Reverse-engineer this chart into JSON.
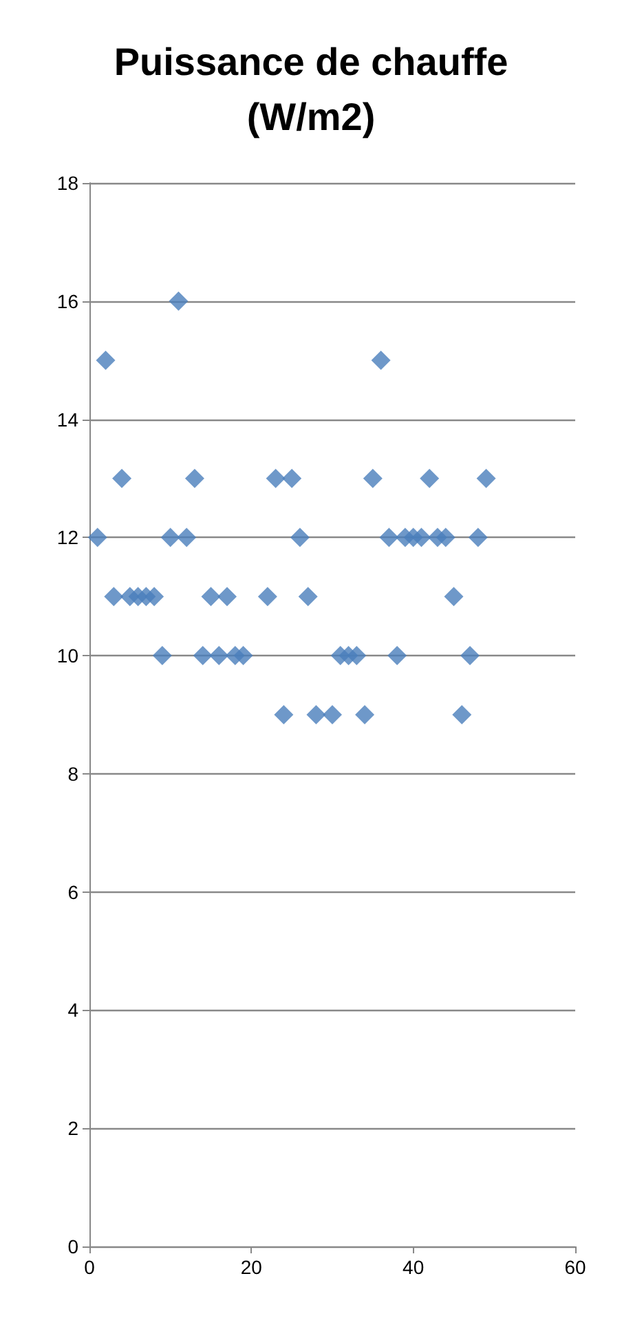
{
  "chart_data": {
    "type": "scatter",
    "title": "Puissance de chauffe\n(W/m2)",
    "x": [
      1,
      2,
      3,
      4,
      5,
      6,
      7,
      8,
      9,
      10,
      11,
      12,
      13,
      14,
      15,
      16,
      17,
      18,
      19,
      22,
      23,
      24,
      25,
      26,
      27,
      28,
      30,
      31,
      32,
      33,
      34,
      35,
      36,
      37,
      38,
      39,
      40,
      41,
      42,
      43,
      44,
      45,
      46,
      47,
      48,
      49
    ],
    "values": [
      12,
      15,
      11,
      13,
      11,
      11,
      11,
      11,
      10,
      12,
      16,
      12,
      13,
      10,
      11,
      10,
      11,
      10,
      10,
      11,
      13,
      9,
      13,
      12,
      11,
      9,
      9,
      10,
      10,
      10,
      9,
      13,
      15,
      12,
      10,
      12,
      12,
      12,
      13,
      12,
      12,
      11,
      9,
      10,
      12,
      13
    ],
    "color": "#4a7ebb",
    "marker": "diamond",
    "grid": "y",
    "xlim": [
      0,
      60
    ],
    "xticks": [
      0,
      20,
      40,
      60
    ],
    "ylim": [
      0,
      18
    ],
    "yticks": [
      0,
      2,
      4,
      6,
      8,
      10,
      12,
      14,
      16,
      18
    ]
  }
}
